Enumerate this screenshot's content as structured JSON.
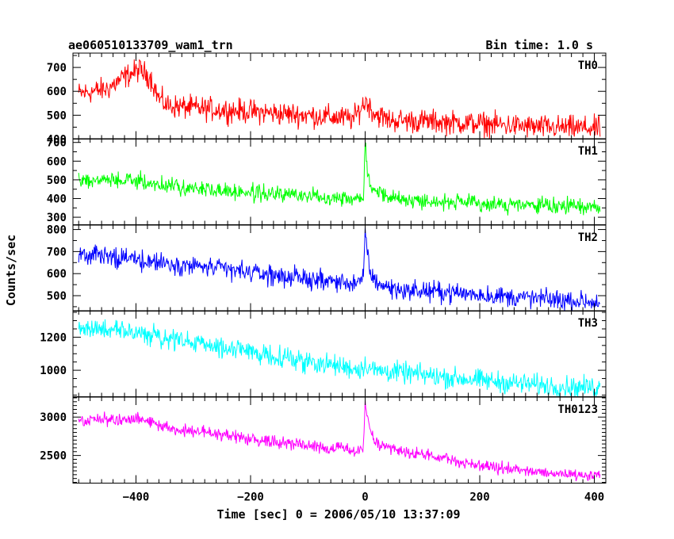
{
  "header": {
    "left": "ae060510133709_wam1_trn",
    "right": "Bin time: 1.0 s"
  },
  "axes": {
    "xlabel": "Time [sec] 0 = 2006/05/10 13:37:09",
    "ylabel": "Counts/sec"
  },
  "chart_data": {
    "type": "line",
    "x_range": [
      -510,
      420
    ],
    "x_ticks": [
      -400,
      -200,
      0,
      200,
      400
    ],
    "x_tick_labels": [
      "−400",
      "−200",
      "0",
      "200",
      "400"
    ],
    "bin_time_s": 1.0,
    "panels": [
      {
        "name": "TH0",
        "color": "#ff0000",
        "ylim": [
          400,
          760
        ],
        "yticks": [
          400,
          500,
          600,
          700
        ],
        "ytick_labels": [
          "400",
          "500",
          "600",
          "700"
        ],
        "noise": 35,
        "trend": [
          [
            -500,
            590
          ],
          [
            -450,
            610
          ],
          [
            -420,
            660
          ],
          [
            -395,
            690
          ],
          [
            -375,
            660
          ],
          [
            -360,
            570
          ],
          [
            -345,
            540
          ],
          [
            -300,
            530
          ],
          [
            -200,
            515
          ],
          [
            -100,
            500
          ],
          [
            -20,
            485
          ],
          [
            -5,
            540
          ],
          [
            2,
            560
          ],
          [
            15,
            510
          ],
          [
            40,
            480
          ],
          [
            100,
            475
          ],
          [
            200,
            465
          ],
          [
            300,
            450
          ],
          [
            410,
            445
          ]
        ]
      },
      {
        "name": "TH1",
        "color": "#00ff00",
        "ylim": [
          260,
          720
        ],
        "yticks": [
          300,
          400,
          500,
          600,
          700
        ],
        "ytick_labels": [
          "300",
          "400",
          "500",
          "600",
          "700"
        ],
        "noise": 30,
        "trend": [
          [
            -500,
            500
          ],
          [
            -400,
            495
          ],
          [
            -350,
            470
          ],
          [
            -300,
            455
          ],
          [
            -200,
            430
          ],
          [
            -100,
            415
          ],
          [
            -10,
            400
          ],
          [
            -3,
            420
          ],
          [
            0,
            710
          ],
          [
            4,
            550
          ],
          [
            10,
            470
          ],
          [
            25,
            430
          ],
          [
            60,
            395
          ],
          [
            150,
            380
          ],
          [
            250,
            365
          ],
          [
            410,
            355
          ]
        ]
      },
      {
        "name": "TH2",
        "color": "#0000ff",
        "ylim": [
          430,
          820
        ],
        "yticks": [
          500,
          600,
          700,
          800
        ],
        "ytick_labels": [
          "500",
          "600",
          "700",
          "800"
        ],
        "noise": 32,
        "trend": [
          [
            -500,
            690
          ],
          [
            -400,
            665
          ],
          [
            -300,
            635
          ],
          [
            -200,
            605
          ],
          [
            -100,
            575
          ],
          [
            -10,
            555
          ],
          [
            -3,
            575
          ],
          [
            0,
            810
          ],
          [
            4,
            680
          ],
          [
            12,
            580
          ],
          [
            30,
            545
          ],
          [
            60,
            525
          ],
          [
            150,
            515
          ],
          [
            250,
            495
          ],
          [
            410,
            470
          ]
        ]
      },
      {
        "name": "TH3",
        "color": "#00ffff",
        "ylim": [
          840,
          1360
        ],
        "yticks": [
          1000,
          1200
        ],
        "ytick_labels": [
          "1000",
          "1200"
        ],
        "noise": 45,
        "trend": [
          [
            -500,
            1260
          ],
          [
            -400,
            1225
          ],
          [
            -300,
            1165
          ],
          [
            -200,
            1110
          ],
          [
            -100,
            1055
          ],
          [
            -10,
            1005
          ],
          [
            2,
            1035
          ],
          [
            15,
            1000
          ],
          [
            50,
            990
          ],
          [
            150,
            955
          ],
          [
            250,
            925
          ],
          [
            350,
            900
          ],
          [
            410,
            895
          ]
        ]
      },
      {
        "name": "TH0123",
        "color": "#ff00ff",
        "ylim": [
          2140,
          3260
        ],
        "yticks": [
          2500,
          3000
        ],
        "ytick_labels": [
          "2500",
          "3000"
        ],
        "noise": 55,
        "trend": [
          [
            -500,
            2950
          ],
          [
            -450,
            2960
          ],
          [
            -400,
            2980
          ],
          [
            -380,
            2960
          ],
          [
            -360,
            2880
          ],
          [
            -300,
            2820
          ],
          [
            -200,
            2720
          ],
          [
            -100,
            2630
          ],
          [
            -10,
            2560
          ],
          [
            -3,
            2600
          ],
          [
            0,
            3230
          ],
          [
            5,
            2900
          ],
          [
            15,
            2700
          ],
          [
            40,
            2580
          ],
          [
            100,
            2510
          ],
          [
            200,
            2370
          ],
          [
            300,
            2280
          ],
          [
            410,
            2240
          ]
        ]
      }
    ]
  }
}
